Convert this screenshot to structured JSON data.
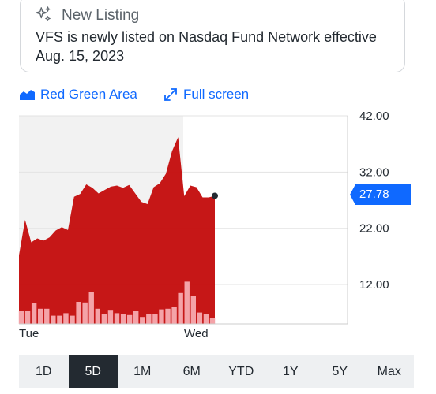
{
  "notice": {
    "icon": "sparkle-icon",
    "title": "New Listing",
    "body": "VFS is newly listed on Nasdaq Fund Network effective Aug. 15, 2023"
  },
  "toolbar": {
    "chart_type_label": "Red Green Area",
    "chart_type_icon": "area-chart-icon",
    "fullscreen_label": "Full screen",
    "fullscreen_icon": "expand-icon"
  },
  "price_badge": "27.78",
  "range_tabs": [
    {
      "label": "1D",
      "active": false
    },
    {
      "label": "5D",
      "active": true
    },
    {
      "label": "1M",
      "active": false
    },
    {
      "label": "6M",
      "active": false
    },
    {
      "label": "YTD",
      "active": false
    },
    {
      "label": "1Y",
      "active": false
    },
    {
      "label": "5Y",
      "active": false
    },
    {
      "label": "Max",
      "active": false
    }
  ],
  "colors": {
    "area_fill": "#c41010",
    "volume_bar": "#f4a3a8",
    "accent": "#0f69ff",
    "active_tab": "#232a31"
  },
  "chart_data": {
    "type": "area",
    "ylim": [
      5,
      42
    ],
    "y_ticks": [
      "42.00",
      "32.00",
      "22.00",
      "12.00"
    ],
    "y_tick_values": [
      42,
      32,
      22,
      12
    ],
    "x_labels": [
      "Tue",
      "Wed"
    ],
    "last_price": 27.78,
    "series": [
      {
        "values": [
          17.2,
          23.5,
          19.5,
          20.2,
          19.8,
          20.4,
          21.6,
          22.2,
          21.7,
          27.6,
          28.1,
          29.8,
          29.2,
          28.2,
          28.8,
          29.4,
          29.6,
          29.2,
          29.7,
          28.2,
          26.7,
          26.3,
          29.3,
          30.0,
          31.7,
          35.7,
          38.2,
          27.7,
          29.6,
          29.3,
          27.5,
          27.5,
          27.78
        ]
      }
    ],
    "volume": [
      2,
      2,
      3.3,
      2.4,
      2.4,
      1.3,
      1.3,
      1.7,
      1.3,
      3.5,
      3.4,
      5.1,
      2.4,
      1.6,
      2.1,
      1.7,
      1.5,
      1.4,
      2.0,
      1.1,
      1.6,
      1.6,
      2.3,
      2.4,
      2.7,
      4.9,
      6.7,
      4.4,
      1.8,
      1.6,
      0.9
    ]
  }
}
